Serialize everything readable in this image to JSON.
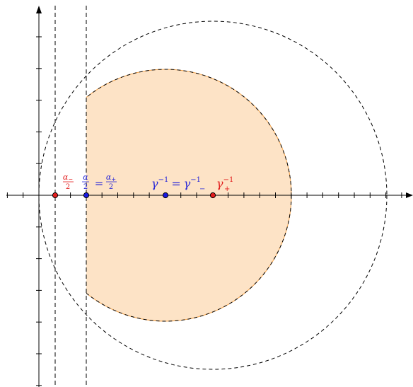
{
  "colors": {
    "axis": "#000000",
    "dashed": "#000000",
    "region_fill": "#fde3c6",
    "region_stroke": "#f4a34a",
    "red_point": "#e21e1e",
    "blue_point": "#1a1ae0",
    "red_label": "#e21e1e",
    "blue_label": "#2a2ad8"
  },
  "labels": {
    "alpha_minus": {
      "num": "α",
      "num_sub": "−",
      "den": "2"
    },
    "alpha_eq": {
      "num": "α",
      "den": "2",
      "eq": "=",
      "rhs_num": "α",
      "rhs_num_sub": "+",
      "rhs_den": "2"
    },
    "gamma_eq": {
      "g1": "γ",
      "sup1": "−1",
      "eq": "=",
      "g2": "γ",
      "sup2": "−1",
      "sub2": "−"
    },
    "gamma_plus": {
      "g": "γ",
      "sup": "−1",
      "sub": "+"
    }
  },
  "points": [
    {
      "name": "alpha-minus-half-point",
      "color": "red"
    },
    {
      "name": "alpha-half-point",
      "color": "blue"
    },
    {
      "name": "gamma-inverse-point",
      "color": "blue"
    },
    {
      "name": "gamma-plus-inverse-point",
      "color": "red"
    }
  ]
}
